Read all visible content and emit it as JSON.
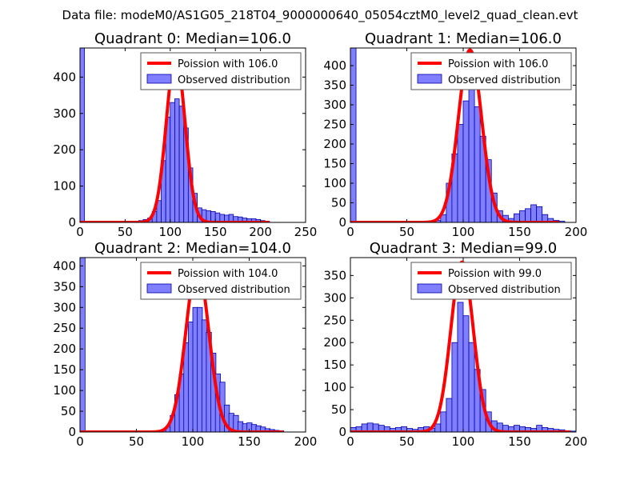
{
  "suptitle": "Data file: modeM0/AS1G05_218T04_9000000640_05054cztM0_level2_quad_clean.evt",
  "colors": {
    "bar_fill": "#7f7fff",
    "bar_edge": "#0000a8",
    "poisson_line": "#ff0000",
    "axes": "#000000",
    "legend_border": "#555555"
  },
  "legend_labels": {
    "observed": "Observed distribution"
  },
  "chart_data": [
    {
      "type": "bar",
      "title": "Quadrant 0: Median=106.0",
      "median": 106.0,
      "poisson_label": "Poission with 106.0",
      "xlim": [
        0,
        250
      ],
      "ylim": [
        0,
        480
      ],
      "xticks": [
        0,
        50,
        100,
        150,
        200,
        250
      ],
      "yticks": [
        0,
        100,
        200,
        300,
        400
      ],
      "bin_width": 5,
      "bins": [
        [
          0,
          480
        ],
        [
          65,
          5
        ],
        [
          70,
          8
        ],
        [
          75,
          12
        ],
        [
          80,
          30
        ],
        [
          85,
          60
        ],
        [
          90,
          170
        ],
        [
          95,
          290
        ],
        [
          100,
          330
        ],
        [
          105,
          340
        ],
        [
          110,
          320
        ],
        [
          115,
          260
        ],
        [
          120,
          150
        ],
        [
          125,
          80
        ],
        [
          130,
          40
        ],
        [
          135,
          35
        ],
        [
          140,
          32
        ],
        [
          145,
          30
        ],
        [
          150,
          26
        ],
        [
          155,
          22
        ],
        [
          160,
          20
        ],
        [
          165,
          22
        ],
        [
          170,
          16
        ],
        [
          175,
          15
        ],
        [
          180,
          12
        ],
        [
          185,
          10
        ],
        [
          190,
          10
        ],
        [
          195,
          8
        ],
        [
          200,
          5
        ],
        [
          205,
          3
        ]
      ],
      "poisson_peak": 460,
      "poisson_xmax": 210
    },
    {
      "type": "bar",
      "title": "Quadrant 1: Median=106.0",
      "median": 106.0,
      "poisson_label": "Poission with 106.0",
      "xlim": [
        0,
        200
      ],
      "ylim": [
        0,
        445
      ],
      "xticks": [
        0,
        50,
        100,
        150,
        200
      ],
      "yticks": [
        0,
        50,
        100,
        150,
        200,
        250,
        300,
        350,
        400
      ],
      "bin_width": 5,
      "bins": [
        [
          0,
          445
        ],
        [
          75,
          5
        ],
        [
          80,
          20
        ],
        [
          85,
          100
        ],
        [
          90,
          175
        ],
        [
          95,
          250
        ],
        [
          100,
          310
        ],
        [
          105,
          350
        ],
        [
          110,
          295
        ],
        [
          115,
          220
        ],
        [
          120,
          160
        ],
        [
          125,
          75
        ],
        [
          130,
          30
        ],
        [
          135,
          18
        ],
        [
          140,
          10
        ],
        [
          145,
          22
        ],
        [
          150,
          30
        ],
        [
          155,
          35
        ],
        [
          160,
          45
        ],
        [
          165,
          40
        ],
        [
          170,
          20
        ],
        [
          175,
          10
        ],
        [
          180,
          5
        ],
        [
          185,
          3
        ]
      ],
      "poisson_peak": 440,
      "poisson_xmax": 185
    },
    {
      "type": "bar",
      "title": "Quadrant 2: Median=104.0",
      "median": 104.0,
      "poisson_label": "Poission with 104.0",
      "xlim": [
        0,
        200
      ],
      "ylim": [
        0,
        420
      ],
      "xticks": [
        0,
        50,
        100,
        150,
        200
      ],
      "yticks": [
        0,
        50,
        100,
        150,
        200,
        250,
        300,
        350,
        400
      ],
      "bin_width": 4.5,
      "bins": [
        [
          0,
          420
        ],
        [
          72,
          5
        ],
        [
          76,
          12
        ],
        [
          80,
          40
        ],
        [
          84,
          90
        ],
        [
          88,
          140
        ],
        [
          92,
          215
        ],
        [
          96,
          265
        ],
        [
          100,
          300
        ],
        [
          104,
          300
        ],
        [
          108,
          270
        ],
        [
          112,
          240
        ],
        [
          116,
          190
        ],
        [
          120,
          140
        ],
        [
          124,
          120
        ],
        [
          128,
          65
        ],
        [
          132,
          45
        ],
        [
          136,
          40
        ],
        [
          140,
          25
        ],
        [
          144,
          20
        ],
        [
          148,
          22
        ],
        [
          152,
          18
        ],
        [
          156,
          15
        ],
        [
          160,
          12
        ],
        [
          164,
          8
        ],
        [
          168,
          6
        ],
        [
          172,
          4
        ],
        [
          176,
          3
        ]
      ],
      "poisson_peak": 400,
      "poisson_xmax": 180
    },
    {
      "type": "bar",
      "title": "Quadrant 3: Median=99.0",
      "median": 99.0,
      "poisson_label": "Poission with 99.0",
      "xlim": [
        0,
        200
      ],
      "ylim": [
        0,
        390
      ],
      "xticks": [
        0,
        50,
        100,
        150,
        200
      ],
      "yticks": [
        0,
        50,
        100,
        150,
        200,
        250,
        300,
        350
      ],
      "bin_width": 5,
      "bins": [
        [
          0,
          10
        ],
        [
          5,
          12
        ],
        [
          10,
          18
        ],
        [
          15,
          20
        ],
        [
          20,
          18
        ],
        [
          25,
          15
        ],
        [
          30,
          12
        ],
        [
          35,
          8
        ],
        [
          40,
          10
        ],
        [
          45,
          12
        ],
        [
          50,
          8
        ],
        [
          55,
          6
        ],
        [
          60,
          10
        ],
        [
          65,
          12
        ],
        [
          70,
          8
        ],
        [
          75,
          18
        ],
        [
          80,
          45
        ],
        [
          85,
          75
        ],
        [
          90,
          200
        ],
        [
          95,
          290
        ],
        [
          100,
          260
        ],
        [
          105,
          200
        ],
        [
          110,
          140
        ],
        [
          115,
          95
        ],
        [
          120,
          45
        ],
        [
          125,
          25
        ],
        [
          130,
          20
        ],
        [
          135,
          15
        ],
        [
          140,
          12
        ],
        [
          145,
          15
        ],
        [
          150,
          12
        ],
        [
          155,
          10
        ],
        [
          160,
          8
        ],
        [
          165,
          15
        ],
        [
          170,
          10
        ],
        [
          175,
          8
        ],
        [
          180,
          6
        ],
        [
          185,
          5
        ],
        [
          190,
          3
        ],
        [
          195,
          2
        ]
      ],
      "poisson_peak": 380,
      "poisson_xmax": 195
    }
  ]
}
